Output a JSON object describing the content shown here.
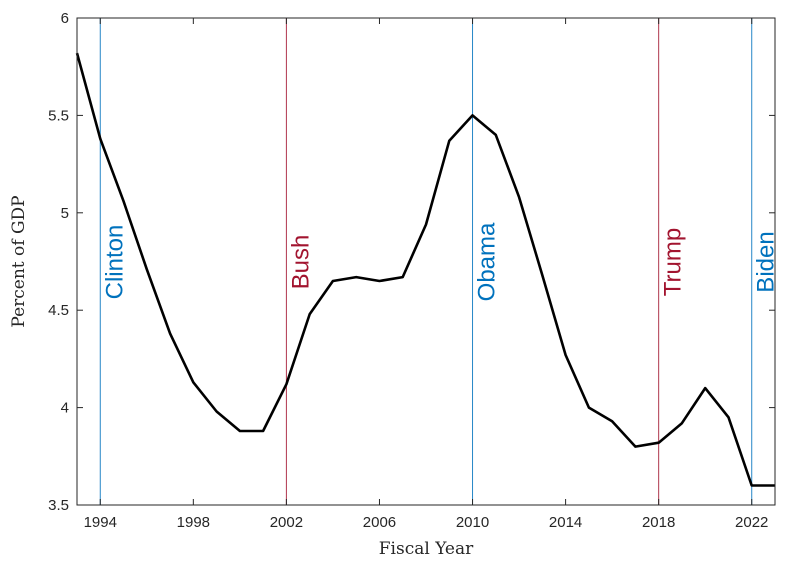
{
  "chart_data": {
    "type": "line",
    "xlabel": "Fiscal Year",
    "ylabel": "Percent of GDP",
    "xlim": [
      1993,
      2023
    ],
    "ylim": [
      3.5,
      6
    ],
    "xticks": [
      1994,
      1998,
      2002,
      2006,
      2010,
      2014,
      2018,
      2022
    ],
    "yticks": [
      3.5,
      4,
      4.5,
      5,
      5.5,
      6
    ],
    "grid": false,
    "line_color": "#000000",
    "series": [
      {
        "x": [
          1993,
          1994,
          1995,
          1996,
          1997,
          1998,
          1999,
          2000,
          2001,
          2002,
          2003,
          2004,
          2005,
          2006,
          2007,
          2008,
          2009,
          2010,
          2011,
          2012,
          2013,
          2014,
          2015,
          2016,
          2017,
          2018,
          2019,
          2020,
          2021,
          2022,
          2023
        ],
        "values": [
          5.82,
          5.38,
          5.06,
          4.71,
          4.38,
          4.13,
          3.98,
          3.88,
          3.88,
          4.12,
          4.48,
          4.65,
          4.67,
          4.65,
          4.67,
          4.94,
          5.37,
          5.5,
          5.4,
          5.08,
          4.68,
          4.27,
          4.0,
          3.93,
          3.8,
          3.82,
          3.92,
          4.1,
          3.95,
          3.6,
          3.6
        ]
      }
    ],
    "annotations": [
      {
        "text": "Clinton",
        "x": 1994,
        "color": "#0072BD"
      },
      {
        "text": "Bush",
        "x": 2002,
        "color": "#A2142F"
      },
      {
        "text": "Obama",
        "x": 2010,
        "color": "#0072BD"
      },
      {
        "text": "Trump",
        "x": 2018,
        "color": "#A2142F"
      },
      {
        "text": "Biden",
        "x": 2022,
        "color": "#0072BD"
      }
    ]
  }
}
